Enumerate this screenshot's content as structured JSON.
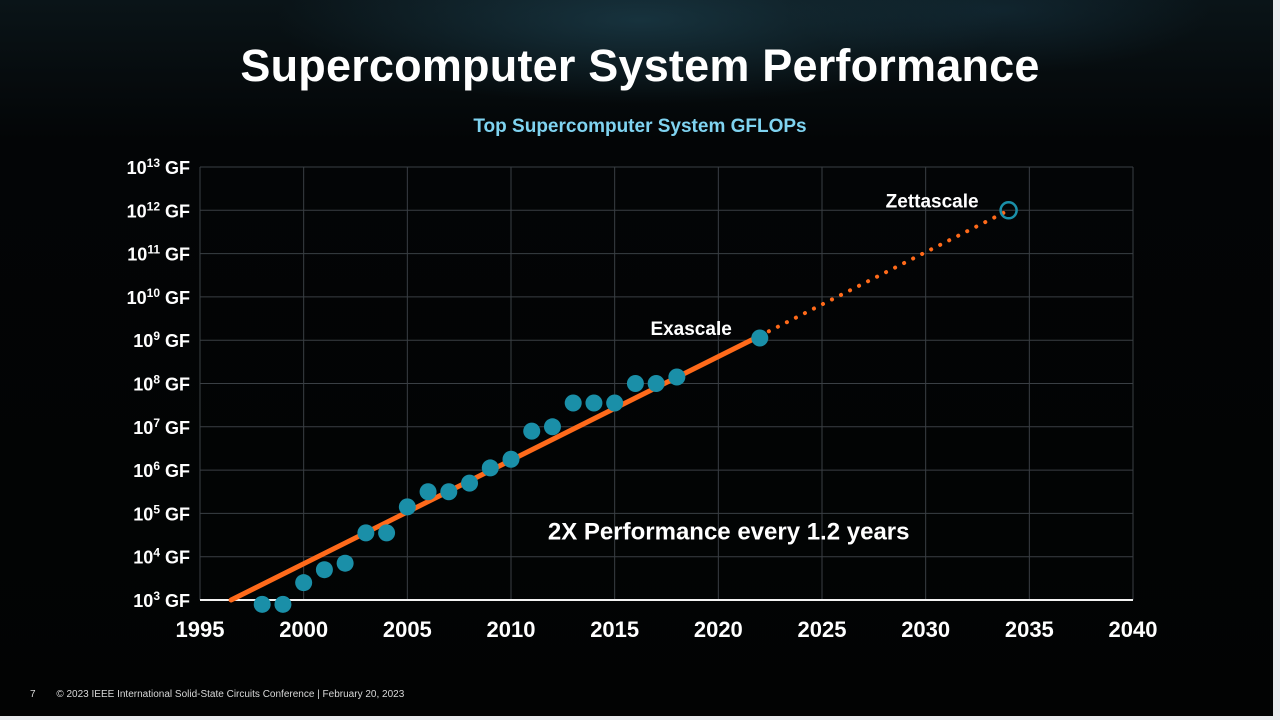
{
  "slide": {
    "title": "Supercomputer System Performance",
    "subtitle": "Top Supercomputer System GFLOPs",
    "page_number": "7",
    "footer": "© 2023 IEEE International Solid-State Circuits Conference  |  February 20, 2023"
  },
  "colors": {
    "point": "#1a8fa8",
    "trend": "#ff6a1a",
    "grid": "#3a3f44",
    "text": "#ffffff"
  },
  "chart_data": {
    "type": "scatter",
    "title": "Top Supercomputer System GFLOPs",
    "xlabel": "",
    "ylabel": "",
    "xlim": [
      1995,
      2040
    ],
    "ylim_log10": [
      3,
      13
    ],
    "y_scale": "log",
    "grid": true,
    "x_ticks": [
      "1995",
      "2000",
      "2005",
      "2010",
      "2015",
      "2020",
      "2025",
      "2030",
      "2035",
      "2040"
    ],
    "y_ticks": [
      {
        "base": "10",
        "exp": "3",
        "unit": " GF"
      },
      {
        "base": "10",
        "exp": "4",
        "unit": " GF"
      },
      {
        "base": "10",
        "exp": "5",
        "unit": " GF"
      },
      {
        "base": "10",
        "exp": "6",
        "unit": " GF"
      },
      {
        "base": "10",
        "exp": "7",
        "unit": " GF"
      },
      {
        "base": "10",
        "exp": "8",
        "unit": " GF"
      },
      {
        "base": "10",
        "exp": "9",
        "unit": " GF"
      },
      {
        "base": "10",
        "exp": "10",
        "unit": " GF"
      },
      {
        "base": "10",
        "exp": "11",
        "unit": " GF"
      },
      {
        "base": "10",
        "exp": "12",
        "unit": " GF"
      },
      {
        "base": "10",
        "exp": "13",
        "unit": " GF"
      }
    ],
    "series": [
      {
        "name": "Top Supercomputer",
        "x": [
          1998,
          1999,
          2000,
          2001,
          2002,
          2003,
          2004,
          2005,
          2006,
          2007,
          2008,
          2009,
          2010,
          2011,
          2012,
          2013,
          2014,
          2015,
          2016,
          2017,
          2018,
          2022
        ],
        "log10_y": [
          2.9,
          2.9,
          3.4,
          3.7,
          3.85,
          4.55,
          4.55,
          5.15,
          5.5,
          5.5,
          5.7,
          6.05,
          6.25,
          6.9,
          7.0,
          7.55,
          7.55,
          7.55,
          8.0,
          8.0,
          8.15,
          9.05
        ]
      }
    ],
    "trend_solid": {
      "x": [
        1996.5,
        2022
      ],
      "log10_y": [
        3.0,
        9.1
      ]
    },
    "trend_dotted": {
      "x": [
        2022,
        2034
      ],
      "log10_y": [
        9.1,
        12.0
      ]
    },
    "projection_point": {
      "x": 2034,
      "log10_y": 12.0,
      "label": "Zettascale"
    },
    "annotations": [
      {
        "text": "Exascale",
        "x": 2022,
        "log10_y": 9.05
      },
      {
        "text": "Zettascale",
        "x": 2034,
        "log10_y": 12.0
      },
      {
        "text": "2X Performance every 1.2 years",
        "x": 2020.5,
        "log10_y": 4.4
      }
    ]
  }
}
